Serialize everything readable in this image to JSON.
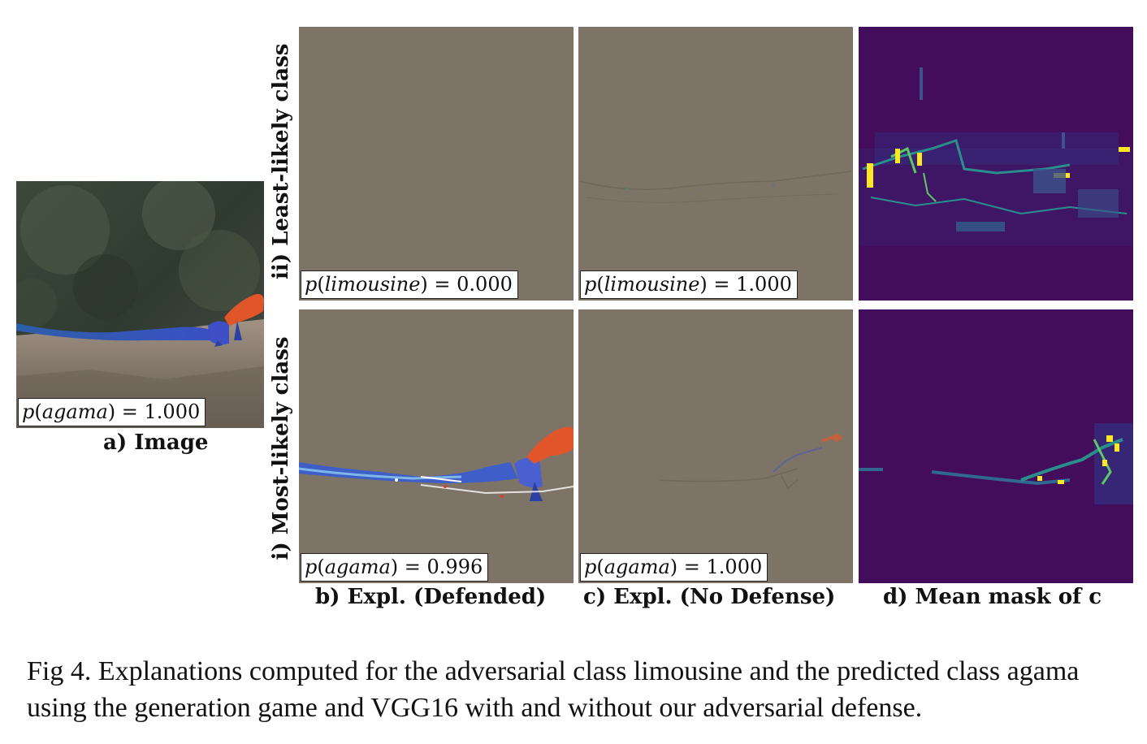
{
  "figure": {
    "image_panel": {
      "label": "a) Image",
      "prob": {
        "cls": "agama",
        "value": "1.000"
      }
    },
    "rows": {
      "least_likely": {
        "label": "ii) Least-likely class"
      },
      "most_likely": {
        "label": "i) Most-likely class"
      }
    },
    "columns": {
      "b": {
        "label": "b) Expl. (Defended)"
      },
      "c": {
        "label": "c) Expl. (No Defense)"
      },
      "d": {
        "label": "d) Mean mask of c"
      }
    },
    "panels": {
      "ll_defended": {
        "cls": "limousine",
        "value": "0.000"
      },
      "ll_nodefense": {
        "cls": "limousine",
        "value": "1.000"
      },
      "ml_defended": {
        "cls": "agama",
        "value": "0.996"
      },
      "ml_nodefense": {
        "cls": "agama",
        "value": "1.000"
      }
    },
    "caption": "Fig 4. Explanations computed for the adversarial class limousine and the predicted class agama using the generation game and VGG16 with and without our adversarial defense."
  },
  "colors": {
    "explanation_bg": "#7d7467",
    "mask_bg": "#430d5c",
    "lizard_body": "#3f5fc8",
    "lizard_head": "#e0552a"
  }
}
